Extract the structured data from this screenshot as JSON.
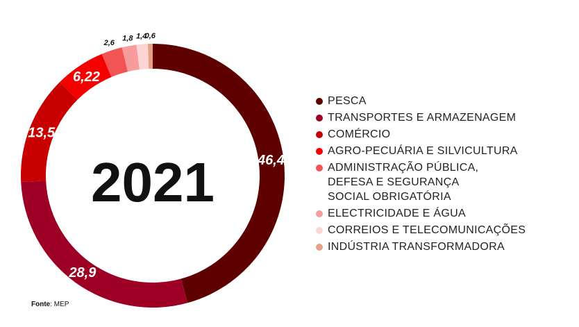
{
  "chart_data": {
    "type": "pie",
    "title": "2021",
    "categories": [
      "PESCA",
      "TRANSPORTES E ARMAZENAGEM",
      " COMÉRCIO",
      "AGRO-PECUÁRIA E SILVICULTURA",
      "ADMINISTRAÇÃO PÚBLICA,\nDEFESA E SEGURANÇA\nSOCIAL OBRIGATÓRIA",
      "ELECTRICIDADE E ÁGUA",
      "CORREIOS E TELECOMUNICAÇÕES",
      "INDÚSTRIA TRANSFORMADORA"
    ],
    "values": [
      46.4,
      28.9,
      13.5,
      6.22,
      2.6,
      1.8,
      1.4,
      0.6
    ],
    "value_labels": [
      "46,4",
      "28,9",
      "13,5",
      "6,22",
      "2,6",
      "1,8",
      "1,4",
      "0,6"
    ],
    "colors": [
      "#5e0000",
      "#9e0025",
      "#c80000",
      "#f50000",
      "#f25454",
      "#f79c9c",
      "#fcd4d4",
      "#e8a083"
    ],
    "legend_position": "right"
  },
  "source": {
    "prefix": "Fonte",
    "text": ": MEP"
  }
}
